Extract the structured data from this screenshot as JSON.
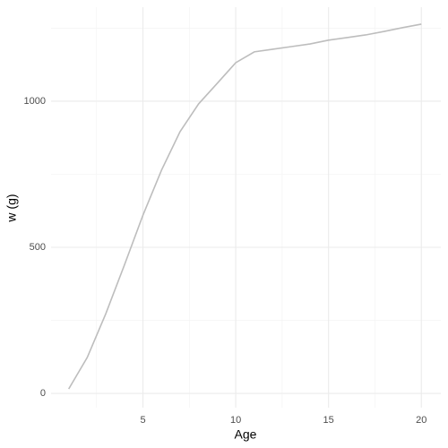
{
  "chart_data": {
    "type": "line",
    "x_label": "Age",
    "y_label": "w (g)",
    "x": [
      1,
      2,
      3,
      4,
      5,
      6,
      7,
      8,
      9,
      10,
      11,
      12,
      13,
      14,
      15,
      16,
      17,
      18,
      19,
      20
    ],
    "series": [
      {
        "name": "w",
        "color": "#bdbdbd",
        "values": [
          15,
          123,
          273,
          439,
          610,
          764,
          896,
          991,
          1061,
          1132,
          1169,
          1178,
          1187,
          1196,
          1209,
          1218,
          1227,
          1239,
          1252,
          1264
        ]
      }
    ],
    "xlim": [
      0.05,
      21.05
    ],
    "ylim": [
      -49,
      1322
    ],
    "xticks": [
      5,
      10,
      15,
      20
    ],
    "yticks": [
      0,
      500,
      1000
    ],
    "xminor": [
      2.5,
      7.5,
      12.5,
      17.5
    ],
    "yminor": [
      250,
      750,
      1250
    ],
    "grid": true
  }
}
